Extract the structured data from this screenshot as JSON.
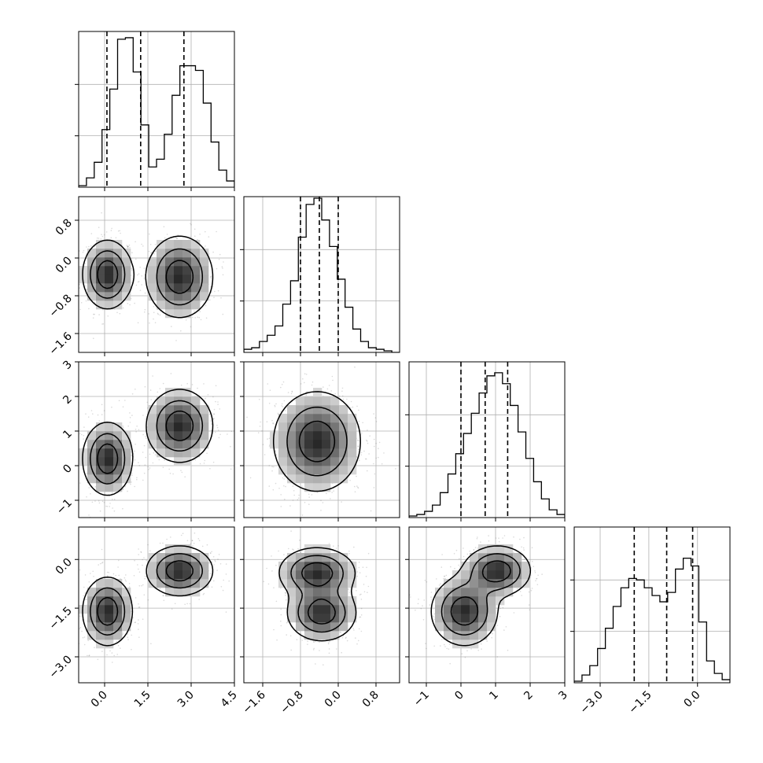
{
  "chart_data": {
    "type": "corner",
    "title": "",
    "parameters": [
      {
        "index": 0,
        "axis_range": [
          -0.9,
          4.5
        ],
        "ticks": [
          0.0,
          1.5,
          3.0,
          4.5
        ],
        "tick_labels": [
          "0.0",
          "1.5",
          "3.0",
          "4.5"
        ],
        "quantiles": [
          0.08,
          1.25,
          2.75
        ]
      },
      {
        "index": 1,
        "axis_range": [
          -2.0,
          1.3
        ],
        "ticks": [
          -1.6,
          -0.8,
          0.0,
          0.8
        ],
        "tick_labels": [
          "−1.6",
          "−0.8",
          "0.0",
          "0.8"
        ],
        "quantiles": [
          -0.8,
          -0.4,
          0.0
        ]
      },
      {
        "index": 2,
        "axis_range": [
          -1.5,
          3.0
        ],
        "ticks": [
          -1,
          0,
          1,
          2,
          3
        ],
        "tick_labels": [
          "−1",
          "0",
          "1",
          "2",
          "3"
        ],
        "quantiles": [
          0.0,
          0.7,
          1.35
        ]
      },
      {
        "index": 3,
        "axis_range": [
          -3.8,
          1.0
        ],
        "ticks": [
          -3.0,
          -1.5,
          0.0
        ],
        "tick_labels": [
          "−3.0",
          "−1.5",
          "0.0"
        ],
        "quantiles": [
          -1.95,
          -0.95,
          -0.15
        ]
      }
    ],
    "histograms": [
      {
        "param": 0,
        "bin_start": -0.9,
        "bin_width": 0.27,
        "counts": [
          0.01,
          0.06,
          0.16,
          0.37,
          0.63,
          0.95,
          0.96,
          0.74,
          0.4,
          0.13,
          0.18,
          0.34,
          0.59,
          0.78,
          0.78,
          0.75,
          0.54,
          0.29,
          0.11,
          0.04
        ]
      },
      {
        "param": 1,
        "bin_start": -2.0,
        "bin_width": 0.165,
        "counts": [
          0.02,
          0.03,
          0.07,
          0.11,
          0.17,
          0.31,
          0.46,
          0.74,
          0.95,
          0.99,
          0.85,
          0.68,
          0.47,
          0.29,
          0.15,
          0.07,
          0.03,
          0.02,
          0.01,
          0.0
        ]
      },
      {
        "param": 2,
        "bin_start": -1.5,
        "bin_width": 0.225,
        "counts": [
          0.01,
          0.02,
          0.04,
          0.08,
          0.16,
          0.28,
          0.41,
          0.54,
          0.67,
          0.8,
          0.91,
          0.93,
          0.86,
          0.72,
          0.55,
          0.38,
          0.23,
          0.12,
          0.05,
          0.02
        ]
      },
      {
        "param": 3,
        "bin_start": -3.8,
        "bin_width": 0.24,
        "counts": [
          0.01,
          0.05,
          0.11,
          0.22,
          0.35,
          0.49,
          0.61,
          0.67,
          0.66,
          0.61,
          0.56,
          0.52,
          0.58,
          0.73,
          0.8,
          0.75,
          0.39,
          0.14,
          0.06,
          0.02
        ]
      }
    ],
    "hist_ymax": 1.0,
    "hist_yticks": [
      0.33,
      0.66
    ],
    "joint": [
      {
        "x_param": 0,
        "y_param": 1,
        "components": [
          {
            "mean": [
              0.1,
              -0.35
            ],
            "sd": [
              0.45,
              0.38
            ],
            "weight": 0.5
          },
          {
            "mean": [
              2.6,
              -0.4
            ],
            "sd": [
              0.6,
              0.45
            ],
            "weight": 0.5
          }
        ]
      },
      {
        "x_param": 0,
        "y_param": 2,
        "components": [
          {
            "mean": [
              0.1,
              0.2
            ],
            "sd": [
              0.45,
              0.55
            ],
            "weight": 0.5
          },
          {
            "mean": [
              2.6,
              1.15
            ],
            "sd": [
              0.6,
              0.55
            ],
            "weight": 0.5
          }
        ]
      },
      {
        "x_param": 1,
        "y_param": 2,
        "components": [
          {
            "mean": [
              -0.45,
              0.7
            ],
            "sd": [
              0.48,
              0.75
            ],
            "weight": 1.0
          }
        ]
      },
      {
        "x_param": 0,
        "y_param": 3,
        "components": [
          {
            "mean": [
              0.1,
              -1.6
            ],
            "sd": [
              0.45,
              0.55
            ],
            "weight": 0.5
          },
          {
            "mean": [
              2.6,
              -0.35
            ],
            "sd": [
              0.6,
              0.4
            ],
            "weight": 0.5
          }
        ]
      },
      {
        "x_param": 1,
        "y_param": 3,
        "components": [
          {
            "mean": [
              -0.45,
              -0.4
            ],
            "sd": [
              0.42,
              0.4
            ],
            "weight": 0.5
          },
          {
            "mean": [
              -0.35,
              -1.65
            ],
            "sd": [
              0.38,
              0.45
            ],
            "weight": 0.5
          }
        ]
      },
      {
        "x_param": 2,
        "y_param": 3,
        "components": [
          {
            "mean": [
              0.1,
              -1.6
            ],
            "sd": [
              0.5,
              0.55
            ],
            "weight": 0.5
          },
          {
            "mean": [
              1.05,
              -0.35
            ],
            "sd": [
              0.5,
              0.4
            ],
            "weight": 0.5
          }
        ]
      }
    ],
    "contour_levels": [
      0.16,
      0.42,
      0.74
    ],
    "colors": {
      "points": "#555555",
      "density": "#000000",
      "grid": "#b0b0b0",
      "line": "#000000"
    }
  }
}
